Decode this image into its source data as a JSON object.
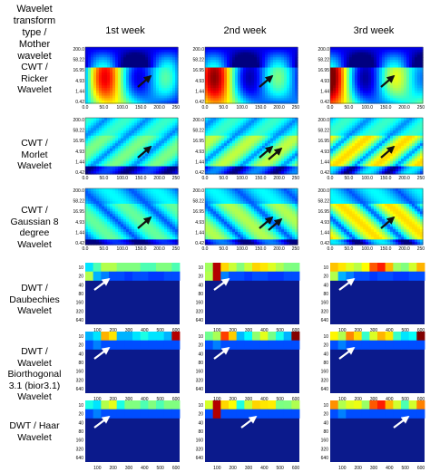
{
  "header": {
    "type_label": [
      "Wavelet",
      "transform",
      "type /",
      "Mother",
      "wavelet"
    ],
    "weeks": [
      "1st week",
      "2nd week",
      "3rd week"
    ]
  },
  "rows": [
    {
      "label": [
        "CWT /",
        "Ricker",
        "Wavelet"
      ],
      "kind": "cwt"
    },
    {
      "label": [
        "CWT /",
        "Morlet",
        "Wavelet"
      ],
      "kind": "cwt"
    },
    {
      "label": [
        "CWT /",
        "Gaussian 8",
        "degree",
        "Wavelet"
      ],
      "kind": "cwt"
    },
    {
      "label": [
        "DWT /",
        "Daubechies",
        "Wavelet"
      ],
      "kind": "dwt"
    },
    {
      "label": [
        "DWT /",
        "Wavelet",
        "Biorthogonal",
        "3.1 (bior3.1)",
        "Wavelet"
      ],
      "kind": "dwt"
    },
    {
      "label": [
        "DWT / Haar",
        "Wavelet"
      ],
      "kind": "dwt"
    }
  ],
  "cwt_axes": {
    "y_ticks": [
      "200.0",
      "58.22",
      "16.95",
      "4.93",
      "1.44",
      "0.42"
    ],
    "x_ticks": [
      "0.0",
      "50.0",
      "100.0",
      "150.0",
      "200.0",
      "250.0"
    ]
  },
  "dwt_axes": {
    "y_ticks": [
      "10",
      "20",
      "40",
      "80",
      "160",
      "320",
      "640"
    ],
    "x_ticks": [
      "100",
      "200",
      "300",
      "400",
      "500",
      "600"
    ]
  },
  "colors": {
    "arrow_cwt": "#111111",
    "arrow_dwt": "#ffffff",
    "dwt_background": "#0b1a8c"
  }
}
